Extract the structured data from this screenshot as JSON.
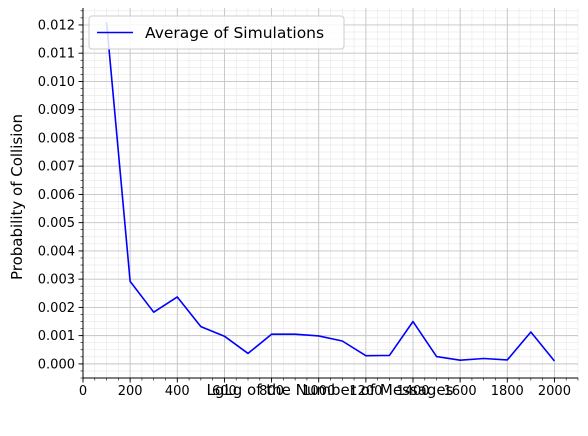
{
  "chart_data": {
    "type": "line",
    "xlabel": "LgLg of the Number of Messages",
    "ylabel": "Probability of Collision",
    "xlim": [
      0,
      2100
    ],
    "ylim": [
      -0.0005,
      0.0126
    ],
    "x_ticks": [
      0,
      200,
      400,
      600,
      800,
      1000,
      1200,
      1400,
      1600,
      1800,
      2000
    ],
    "y_ticks": [
      0.0,
      0.001,
      0.002,
      0.003,
      0.004,
      0.005,
      0.006,
      0.007,
      0.008,
      0.009,
      0.01,
      0.011,
      0.012
    ],
    "grid": true,
    "minor_grid": true,
    "legend_position": "top-left",
    "series": [
      {
        "name": "Average of Simulations",
        "color": "#0000ff",
        "x": [
          100,
          200,
          300,
          400,
          500,
          600,
          700,
          800,
          900,
          1000,
          1100,
          1200,
          1300,
          1400,
          1500,
          1600,
          1700,
          1800,
          1900,
          2000
        ],
        "y": [
          0.0121,
          0.00292,
          0.00183,
          0.00237,
          0.00132,
          0.00098,
          0.00037,
          0.00105,
          0.00105,
          0.00099,
          0.00081,
          0.00029,
          0.0003,
          0.0015,
          0.00026,
          0.00013,
          0.00019,
          0.00014,
          0.00113,
          0.0001
        ]
      }
    ]
  }
}
